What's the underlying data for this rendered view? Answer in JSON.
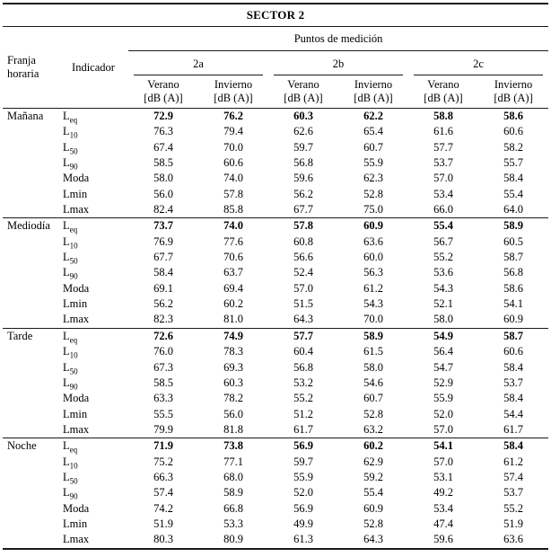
{
  "table": {
    "title": "SECTOR 2",
    "col_group_header": "Puntos de medición",
    "row_header_1": "Franja horaria",
    "row_header_2": "Indicador",
    "points": [
      "2a",
      "2b",
      "2c"
    ],
    "season_cols": [
      {
        "name": "Verano",
        "unit": "[dB (A)]"
      },
      {
        "name": "Invierno",
        "unit": "[dB (A)]"
      }
    ],
    "sections": [
      {
        "name": "Mañana",
        "rows": [
          {
            "indicator": {
              "base": "L",
              "sub": "eq"
            },
            "bold": true,
            "values": [
              "72.9",
              "76.2",
              "60.3",
              "62.2",
              "58.8",
              "58.6"
            ]
          },
          {
            "indicator": {
              "base": "L",
              "sub": "10"
            },
            "bold": false,
            "values": [
              "76.3",
              "79.4",
              "62.6",
              "65.4",
              "61.6",
              "60.6"
            ]
          },
          {
            "indicator": {
              "base": "L",
              "sub": "50"
            },
            "bold": false,
            "values": [
              "67.4",
              "70.0",
              "59.7",
              "60.7",
              "57.7",
              "58.2"
            ]
          },
          {
            "indicator": {
              "base": "L",
              "sub": "90"
            },
            "bold": false,
            "values": [
              "58.5",
              "60.6",
              "56.8",
              "55.9",
              "53.7",
              "55.7"
            ]
          },
          {
            "indicator": {
              "base": "Moda",
              "sub": ""
            },
            "bold": false,
            "values": [
              "58.0",
              "74.0",
              "59.6",
              "62.3",
              "57.0",
              "58.4"
            ]
          },
          {
            "indicator": {
              "base": "Lmin",
              "sub": ""
            },
            "bold": false,
            "values": [
              "56.0",
              "57.8",
              "56.2",
              "52.8",
              "53.4",
              "55.4"
            ]
          },
          {
            "indicator": {
              "base": "Lmax",
              "sub": ""
            },
            "bold": false,
            "values": [
              "82.4",
              "85.8",
              "67.7",
              "75.0",
              "66.0",
              "64.0"
            ]
          }
        ]
      },
      {
        "name": "Mediodía",
        "rows": [
          {
            "indicator": {
              "base": "L",
              "sub": "eq"
            },
            "bold": true,
            "values": [
              "73.7",
              "74.0",
              "57.8",
              "60.9",
              "55.4",
              "58.9"
            ]
          },
          {
            "indicator": {
              "base": "L",
              "sub": "10"
            },
            "bold": false,
            "values": [
              "76.9",
              "77.6",
              "60.8",
              "63.6",
              "56.7",
              "60.5"
            ]
          },
          {
            "indicator": {
              "base": "L",
              "sub": "50"
            },
            "bold": false,
            "values": [
              "67.7",
              "70.6",
              "56.6",
              "60.0",
              "55.2",
              "58.7"
            ]
          },
          {
            "indicator": {
              "base": "L",
              "sub": "90"
            },
            "bold": false,
            "values": [
              "58.4",
              "63.7",
              "52.4",
              "56.3",
              "53.6",
              "56.8"
            ]
          },
          {
            "indicator": {
              "base": "Moda",
              "sub": ""
            },
            "bold": false,
            "values": [
              "69.1",
              "69.4",
              "57.0",
              "61.2",
              "54.3",
              "58.6"
            ]
          },
          {
            "indicator": {
              "base": "Lmin",
              "sub": ""
            },
            "bold": false,
            "values": [
              "56.2",
              "60.2",
              "51.5",
              "54.3",
              "52.1",
              "54.1"
            ]
          },
          {
            "indicator": {
              "base": "Lmax",
              "sub": ""
            },
            "bold": false,
            "values": [
              "82.3",
              "81.0",
              "64.3",
              "70.0",
              "58.0",
              "60.9"
            ]
          }
        ]
      },
      {
        "name": "Tarde",
        "rows": [
          {
            "indicator": {
              "base": "L",
              "sub": "eq"
            },
            "bold": true,
            "values": [
              "72.6",
              "74.9",
              "57.7",
              "58.9",
              "54.9",
              "58.7"
            ]
          },
          {
            "indicator": {
              "base": "L",
              "sub": "10"
            },
            "bold": false,
            "values": [
              "76.0",
              "78.3",
              "60.4",
              "61.5",
              "56.4",
              "60.6"
            ]
          },
          {
            "indicator": {
              "base": "L",
              "sub": "50"
            },
            "bold": false,
            "values": [
              "67.3",
              "69.3",
              "56.8",
              "58.0",
              "54.7",
              "58.4"
            ]
          },
          {
            "indicator": {
              "base": "L",
              "sub": "90"
            },
            "bold": false,
            "values": [
              "58.5",
              "60.3",
              "53.2",
              "54.6",
              "52.9",
              "53.7"
            ]
          },
          {
            "indicator": {
              "base": "Moda",
              "sub": ""
            },
            "bold": false,
            "values": [
              "63.3",
              "78.2",
              "55.2",
              "60.7",
              "55.9",
              "58.4"
            ]
          },
          {
            "indicator": {
              "base": "Lmin",
              "sub": ""
            },
            "bold": false,
            "values": [
              "55.5",
              "56.0",
              "51.2",
              "52.8",
              "52.0",
              "54.4"
            ]
          },
          {
            "indicator": {
              "base": "Lmax",
              "sub": ""
            },
            "bold": false,
            "values": [
              "79.9",
              "81.8",
              "61.7",
              "63.2",
              "57.0",
              "61.7"
            ]
          }
        ]
      },
      {
        "name": "Noche",
        "rows": [
          {
            "indicator": {
              "base": "L",
              "sub": "eq"
            },
            "bold": true,
            "values": [
              "71.9",
              "73.8",
              "56.9",
              "60.2",
              "54.1",
              "58.4"
            ]
          },
          {
            "indicator": {
              "base": "L",
              "sub": "10"
            },
            "bold": false,
            "values": [
              "75.2",
              "77.1",
              "59.7",
              "62.9",
              "57.0",
              "61.2"
            ]
          },
          {
            "indicator": {
              "base": "L",
              "sub": "50"
            },
            "bold": false,
            "values": [
              "66.3",
              "68.0",
              "55.9",
              "59.2",
              "53.1",
              "57.4"
            ]
          },
          {
            "indicator": {
              "base": "L",
              "sub": "90"
            },
            "bold": false,
            "values": [
              "57.4",
              "58.9",
              "52.0",
              "55.4",
              "49.2",
              "53.7"
            ]
          },
          {
            "indicator": {
              "base": "Moda",
              "sub": ""
            },
            "bold": false,
            "values": [
              "74.2",
              "66.8",
              "56.9",
              "60.9",
              "53.4",
              "55.2"
            ]
          },
          {
            "indicator": {
              "base": "Lmin",
              "sub": ""
            },
            "bold": false,
            "values": [
              "51.9",
              "53.3",
              "49.9",
              "52.8",
              "47.4",
              "51.9"
            ]
          },
          {
            "indicator": {
              "base": "Lmax",
              "sub": ""
            },
            "bold": false,
            "values": [
              "80.3",
              "80.9",
              "61.3",
              "64.3",
              "59.6",
              "63.6"
            ]
          }
        ]
      }
    ]
  }
}
